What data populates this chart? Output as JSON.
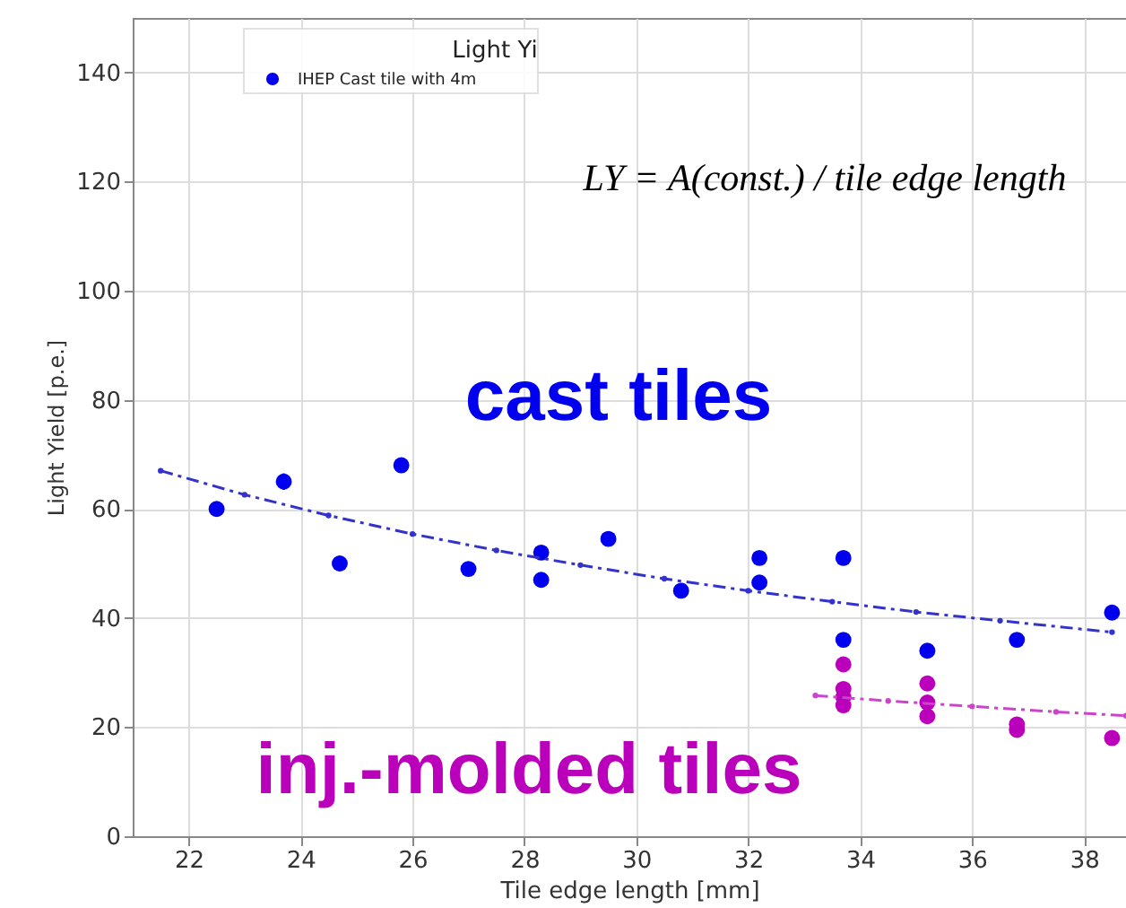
{
  "chart_data": {
    "type": "scatter",
    "xlabel": "Tile edge length [mm]",
    "ylabel": "Light Yield [p.e.]",
    "legend_title": "Light Yi",
    "xlim": [
      21,
      38.75
    ],
    "xticks": [
      22,
      24,
      26,
      28,
      30,
      32,
      34,
      36,
      38
    ],
    "ylim": [
      0,
      150
    ],
    "yticks": [
      0,
      20,
      40,
      60,
      80,
      100,
      120,
      140
    ],
    "grid": true,
    "legend": "top left",
    "marker": "circle",
    "series": [
      {
        "name": "IHEP Cast tile with 4m",
        "color": "#0000ee",
        "x": [
          22.5,
          23.7,
          24.7,
          25.8,
          27.0,
          28.3,
          28.3,
          29.5,
          30.8,
          32.2,
          32.2,
          33.7,
          33.7,
          35.2,
          36.8,
          38.5
        ],
        "values": [
          60,
          65,
          50,
          68,
          49,
          52,
          47,
          54.5,
          45,
          51,
          46.5,
          51,
          36,
          34,
          36,
          41
        ],
        "errors": [
          null,
          1.5,
          null,
          null,
          null,
          null,
          null,
          null,
          null,
          null,
          null,
          null,
          null,
          null,
          null,
          null
        ]
      },
      {
        "color": "#bb00bb",
        "x": [
          33.7,
          33.7,
          33.7,
          33.7,
          35.2,
          35.2,
          35.2,
          36.8,
          36.8,
          38.5
        ],
        "values": [
          31.5,
          27,
          25.5,
          24,
          28,
          24.5,
          22,
          20.5,
          19.5,
          18
        ]
      },
      {
        "color": "#3333cc",
        "type": "line",
        "line_style": "dashed",
        "marker": "circle",
        "x": [
          21.5,
          23.0,
          24.5,
          26.0,
          27.5,
          29.0,
          30.5,
          32.0,
          33.5,
          35.0,
          36.5,
          38.5
        ],
        "values": [
          67,
          62.6,
          58.8,
          55.4,
          52.4,
          49.7,
          47.2,
          45,
          43,
          41.1,
          39.5,
          37.4
        ]
      },
      {
        "color": "#cc44cc",
        "type": "line",
        "line_style": "dashed",
        "marker": "circle",
        "x": [
          33.2,
          34.5,
          36.0,
          37.5,
          38.75
        ],
        "values": [
          25.8,
          24.8,
          23.8,
          22.8,
          22.1
        ]
      }
    ],
    "annotations": [
      "cast tiles",
      "inj.-molded tiles",
      "LY = A(const.) / tile edge length"
    ]
  }
}
